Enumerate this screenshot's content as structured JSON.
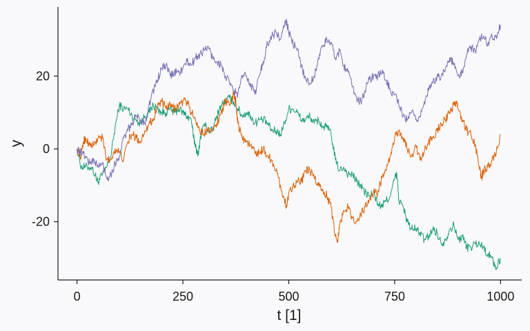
{
  "chart_data": {
    "type": "line",
    "title": "",
    "xlabel": "t [1]",
    "ylabel": "y",
    "xlim": [
      -45,
      1050
    ],
    "ylim": [
      -36,
      39
    ],
    "x_ticks": [
      0,
      250,
      500,
      750,
      1000
    ],
    "x_tick_labels": [
      "0",
      "250",
      "500",
      "750",
      "1000"
    ],
    "y_ticks": [
      -20,
      0,
      20
    ],
    "y_tick_labels": [
      "-20",
      "0",
      "20"
    ],
    "grid": false,
    "legend": "none",
    "series": [
      {
        "color": "#1b9e77",
        "points": [
          [
            0,
            0
          ],
          [
            10,
            -5
          ],
          [
            20,
            -5
          ],
          [
            35,
            -5
          ],
          [
            45,
            -8
          ],
          [
            50,
            -9
          ],
          [
            60,
            -7
          ],
          [
            70,
            -5
          ],
          [
            80,
            -2
          ],
          [
            90,
            6
          ],
          [
            100,
            12
          ],
          [
            110,
            11
          ],
          [
            120,
            11
          ],
          [
            130,
            9
          ],
          [
            140,
            8
          ],
          [
            150,
            7
          ],
          [
            160,
            9
          ],
          [
            170,
            10
          ],
          [
            180,
            12
          ],
          [
            190,
            11
          ],
          [
            200,
            10
          ],
          [
            210,
            10
          ],
          [
            220,
            11
          ],
          [
            230,
            10
          ],
          [
            240,
            11
          ],
          [
            250,
            10
          ],
          [
            260,
            9
          ],
          [
            270,
            8
          ],
          [
            275,
            3
          ],
          [
            280,
            1
          ],
          [
            285,
            -2
          ],
          [
            290,
            2
          ],
          [
            300,
            7
          ],
          [
            310,
            5
          ],
          [
            320,
            5
          ],
          [
            330,
            9
          ],
          [
            340,
            12
          ],
          [
            350,
            13
          ],
          [
            360,
            14
          ],
          [
            370,
            13
          ],
          [
            380,
            11
          ],
          [
            390,
            9
          ],
          [
            400,
            10
          ],
          [
            410,
            9
          ],
          [
            420,
            7
          ],
          [
            430,
            8
          ],
          [
            440,
            8
          ],
          [
            450,
            7
          ],
          [
            460,
            5
          ],
          [
            470,
            5
          ],
          [
            480,
            4
          ],
          [
            490,
            7
          ],
          [
            500,
            11
          ],
          [
            510,
            11
          ],
          [
            520,
            10
          ],
          [
            530,
            8
          ],
          [
            540,
            8
          ],
          [
            550,
            9
          ],
          [
            560,
            7
          ],
          [
            570,
            8
          ],
          [
            580,
            6
          ],
          [
            590,
            6
          ],
          [
            600,
            4
          ],
          [
            610,
            -3
          ],
          [
            620,
            -6
          ],
          [
            630,
            -5
          ],
          [
            640,
            -7
          ],
          [
            650,
            -7
          ],
          [
            660,
            -9
          ],
          [
            670,
            -10
          ],
          [
            680,
            -12
          ],
          [
            690,
            -13
          ],
          [
            700,
            -12
          ],
          [
            710,
            -15
          ],
          [
            720,
            -16
          ],
          [
            730,
            -14
          ],
          [
            740,
            -13
          ],
          [
            750,
            -8
          ],
          [
            755,
            -7
          ],
          [
            760,
            -14
          ],
          [
            770,
            -16
          ],
          [
            780,
            -20
          ],
          [
            790,
            -22
          ],
          [
            800,
            -22
          ],
          [
            810,
            -23
          ],
          [
            820,
            -25
          ],
          [
            830,
            -24
          ],
          [
            840,
            -22
          ],
          [
            850,
            -23
          ],
          [
            860,
            -26
          ],
          [
            870,
            -25
          ],
          [
            880,
            -22
          ],
          [
            890,
            -21
          ],
          [
            900,
            -25
          ],
          [
            910,
            -24
          ],
          [
            920,
            -27
          ],
          [
            930,
            -27
          ],
          [
            940,
            -26
          ],
          [
            950,
            -26
          ],
          [
            960,
            -27
          ],
          [
            970,
            -29
          ],
          [
            980,
            -30
          ],
          [
            990,
            -33
          ],
          [
            1000,
            -30
          ]
        ]
      },
      {
        "color": "#d95f02",
        "points": [
          [
            0,
            0
          ],
          [
            10,
            -2
          ],
          [
            15,
            2
          ],
          [
            20,
            3
          ],
          [
            30,
            1
          ],
          [
            40,
            1
          ],
          [
            50,
            3
          ],
          [
            60,
            3
          ],
          [
            70,
            -3
          ],
          [
            80,
            -3
          ],
          [
            90,
            0
          ],
          [
            100,
            -1
          ],
          [
            110,
            -3
          ],
          [
            120,
            2
          ],
          [
            130,
            4
          ],
          [
            140,
            3
          ],
          [
            150,
            2
          ],
          [
            160,
            5
          ],
          [
            170,
            7
          ],
          [
            180,
            8
          ],
          [
            190,
            12
          ],
          [
            200,
            13
          ],
          [
            210,
            11
          ],
          [
            220,
            12
          ],
          [
            230,
            11
          ],
          [
            240,
            12
          ],
          [
            250,
            13
          ],
          [
            260,
            13
          ],
          [
            270,
            10
          ],
          [
            280,
            8
          ],
          [
            290,
            5
          ],
          [
            300,
            4
          ],
          [
            310,
            6
          ],
          [
            320,
            5
          ],
          [
            330,
            7
          ],
          [
            340,
            10
          ],
          [
            350,
            13
          ],
          [
            360,
            12
          ],
          [
            370,
            15
          ],
          [
            375,
            13
          ],
          [
            380,
            7
          ],
          [
            390,
            3
          ],
          [
            400,
            2
          ],
          [
            410,
            1
          ],
          [
            420,
            -1
          ],
          [
            430,
            -1
          ],
          [
            440,
            0
          ],
          [
            450,
            -2
          ],
          [
            460,
            -3
          ],
          [
            470,
            -6
          ],
          [
            480,
            -10
          ],
          [
            490,
            -14
          ],
          [
            495,
            -16
          ],
          [
            500,
            -12
          ],
          [
            510,
            -10
          ],
          [
            520,
            -9
          ],
          [
            530,
            -9
          ],
          [
            540,
            -6
          ],
          [
            550,
            -6
          ],
          [
            560,
            -8
          ],
          [
            570,
            -10
          ],
          [
            580,
            -11
          ],
          [
            590,
            -13
          ],
          [
            600,
            -16
          ],
          [
            610,
            -24
          ],
          [
            615,
            -25
          ],
          [
            620,
            -21
          ],
          [
            630,
            -17
          ],
          [
            640,
            -16
          ],
          [
            650,
            -19
          ],
          [
            660,
            -20
          ],
          [
            670,
            -18
          ],
          [
            680,
            -16
          ],
          [
            690,
            -14
          ],
          [
            700,
            -12
          ],
          [
            710,
            -12
          ],
          [
            720,
            -8
          ],
          [
            730,
            -6
          ],
          [
            740,
            -2
          ],
          [
            750,
            3
          ],
          [
            760,
            5
          ],
          [
            770,
            3
          ],
          [
            780,
            0
          ],
          [
            790,
            -2
          ],
          [
            800,
            1
          ],
          [
            810,
            -3
          ],
          [
            820,
            -1
          ],
          [
            830,
            2
          ],
          [
            840,
            3
          ],
          [
            850,
            5
          ],
          [
            860,
            7
          ],
          [
            870,
            8
          ],
          [
            880,
            10
          ],
          [
            890,
            12
          ],
          [
            895,
            13
          ],
          [
            900,
            11
          ],
          [
            910,
            8
          ],
          [
            920,
            5
          ],
          [
            930,
            4
          ],
          [
            940,
            1
          ],
          [
            950,
            -5
          ],
          [
            955,
            -8
          ],
          [
            960,
            -6
          ],
          [
            970,
            -5
          ],
          [
            980,
            -3
          ],
          [
            990,
            -1
          ],
          [
            1000,
            4
          ]
        ]
      },
      {
        "color": "#7570b3",
        "points": [
          [
            0,
            0
          ],
          [
            10,
            -1
          ],
          [
            20,
            -2
          ],
          [
            30,
            -4
          ],
          [
            40,
            -3
          ],
          [
            50,
            -5
          ],
          [
            60,
            -4
          ],
          [
            70,
            -8
          ],
          [
            80,
            -7
          ],
          [
            90,
            -4
          ],
          [
            100,
            -2
          ],
          [
            110,
            3
          ],
          [
            120,
            5
          ],
          [
            130,
            7
          ],
          [
            140,
            9
          ],
          [
            150,
            8
          ],
          [
            160,
            7
          ],
          [
            170,
            12
          ],
          [
            180,
            16
          ],
          [
            190,
            19
          ],
          [
            200,
            22
          ],
          [
            210,
            23
          ],
          [
            220,
            20
          ],
          [
            230,
            21
          ],
          [
            240,
            21
          ],
          [
            250,
            22
          ],
          [
            260,
            24
          ],
          [
            270,
            23
          ],
          [
            280,
            25
          ],
          [
            290,
            26
          ],
          [
            300,
            27
          ],
          [
            310,
            28
          ],
          [
            320,
            25
          ],
          [
            330,
            24
          ],
          [
            340,
            23
          ],
          [
            350,
            20
          ],
          [
            360,
            18
          ],
          [
            370,
            16
          ],
          [
            380,
            15
          ],
          [
            390,
            20
          ],
          [
            400,
            20
          ],
          [
            410,
            18
          ],
          [
            420,
            15
          ],
          [
            430,
            20
          ],
          [
            440,
            24
          ],
          [
            450,
            29
          ],
          [
            460,
            31
          ],
          [
            470,
            32
          ],
          [
            480,
            30
          ],
          [
            490,
            34
          ],
          [
            495,
            35
          ],
          [
            500,
            32
          ],
          [
            510,
            29
          ],
          [
            520,
            27
          ],
          [
            530,
            23
          ],
          [
            540,
            19
          ],
          [
            550,
            18
          ],
          [
            560,
            20
          ],
          [
            570,
            25
          ],
          [
            580,
            28
          ],
          [
            590,
            30
          ],
          [
            600,
            29
          ],
          [
            610,
            25
          ],
          [
            620,
            27
          ],
          [
            630,
            23
          ],
          [
            640,
            21
          ],
          [
            650,
            17
          ],
          [
            660,
            14
          ],
          [
            670,
            13
          ],
          [
            680,
            16
          ],
          [
            690,
            19
          ],
          [
            700,
            20
          ],
          [
            710,
            20
          ],
          [
            720,
            21
          ],
          [
            730,
            19
          ],
          [
            740,
            16
          ],
          [
            750,
            15
          ],
          [
            760,
            12
          ],
          [
            770,
            9
          ],
          [
            780,
            8
          ],
          [
            790,
            10
          ],
          [
            800,
            8
          ],
          [
            810,
            9
          ],
          [
            820,
            13
          ],
          [
            830,
            16
          ],
          [
            840,
            18
          ],
          [
            850,
            20
          ],
          [
            860,
            20
          ],
          [
            870,
            22
          ],
          [
            880,
            25
          ],
          [
            890,
            23
          ],
          [
            900,
            20
          ],
          [
            910,
            21
          ],
          [
            920,
            26
          ],
          [
            930,
            28
          ],
          [
            940,
            27
          ],
          [
            950,
            30
          ],
          [
            960,
            31
          ],
          [
            970,
            29
          ],
          [
            980,
            31
          ],
          [
            990,
            31
          ],
          [
            1000,
            34
          ]
        ]
      }
    ]
  }
}
